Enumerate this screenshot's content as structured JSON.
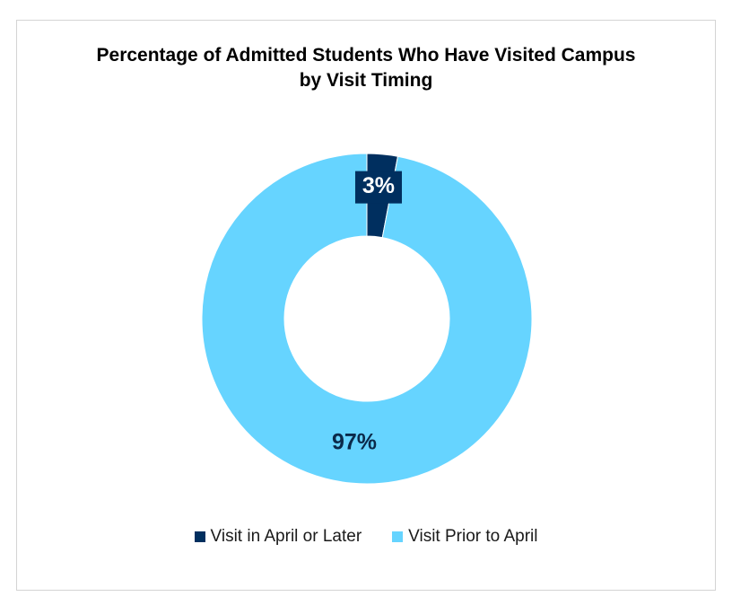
{
  "chart_data": {
    "type": "pie",
    "title_lines": [
      "Percentage of Admitted Students Who Have Visited Campus",
      "by Visit Timing"
    ],
    "series": [
      {
        "name": "Visit in April or Later",
        "value": 3,
        "label": "3%",
        "color": "#002f5f"
      },
      {
        "name": "Visit Prior to April",
        "value": 97,
        "label": "97%",
        "color": "#66d4ff"
      }
    ],
    "legend_placement": "bottom",
    "donut": true
  }
}
